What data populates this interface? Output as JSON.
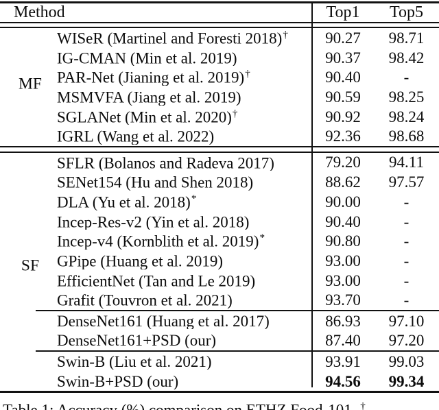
{
  "page": {
    "background_color": "#ffffff",
    "text_color": "#0c0c0c",
    "rule_color": "#111111"
  },
  "table": {
    "header": {
      "method": "Method",
      "top1": "Top1",
      "top5": "Top5"
    },
    "group_labels": {
      "mf": "MF",
      "sf": "SF"
    },
    "rows": [
      {
        "method": "WISeR (Martinel and Foresti 2018)",
        "sup": "†",
        "top1": "90.27",
        "top5": "98.71"
      },
      {
        "method": "IG-CMAN (Min et al. 2019)",
        "sup": "",
        "top1": "90.37",
        "top5": "98.42"
      },
      {
        "method": "PAR-Net (Jianing et al. 2019)",
        "sup": "†",
        "top1": "90.40",
        "top5": "-"
      },
      {
        "method": "MSMVFA (Jiang et al. 2019)",
        "sup": "",
        "top1": "90.59",
        "top5": "98.25"
      },
      {
        "method": "SGLANet (Min et al. 2020)",
        "sup": "†",
        "top1": "90.92",
        "top5": "98.24"
      },
      {
        "method": "IGRL (Wang et al. 2022)",
        "sup": "",
        "top1": "92.36",
        "top5": "98.68"
      },
      {
        "method": "SFLR (Bolanos and Radeva 2017)",
        "sup": "",
        "top1": "79.20",
        "top5": "94.11"
      },
      {
        "method": "SENet154 (Hu and Shen 2018)",
        "sup": "",
        "top1": "88.62",
        "top5": "97.57"
      },
      {
        "method": "DLA (Yu et al. 2018)",
        "sup": "*",
        "top1": "90.00",
        "top5": "-"
      },
      {
        "method": "Incep-Res-v2 (Yin et al. 2018)",
        "sup": "",
        "top1": "90.40",
        "top5": "-"
      },
      {
        "method": "Incep-v4 (Kornblith et al. 2019)",
        "sup": "*",
        "top1": "90.80",
        "top5": "-"
      },
      {
        "method": "GPipe (Huang et al. 2019)",
        "sup": "",
        "top1": "93.00",
        "top5": "-"
      },
      {
        "method": "EfficientNet (Tan and Le 2019)",
        "sup": "",
        "top1": "93.00",
        "top5": "-"
      },
      {
        "method": "Grafit (Touvron et al. 2021)",
        "sup": "",
        "top1": "93.70",
        "top5": "-"
      },
      {
        "method": "DenseNet161 (Huang et al. 2017)",
        "sup": "",
        "top1": "86.93",
        "top5": "97.10"
      },
      {
        "method": "DenseNet161+PSD (our)",
        "sup": "",
        "top1": "87.40",
        "top5": "97.20"
      },
      {
        "method": "Swin-B (Liu et al. 2021)",
        "sup": "",
        "top1": "93.91",
        "top5": "99.03"
      },
      {
        "method": "Swin-B+PSD (our)",
        "sup": "",
        "top1": "94.56",
        "top5": "99.34"
      }
    ]
  },
  "caption": {
    "text": "Table 1: Accuracy (%) comparison on ETHZ Food-101. ",
    "sup": "†"
  }
}
